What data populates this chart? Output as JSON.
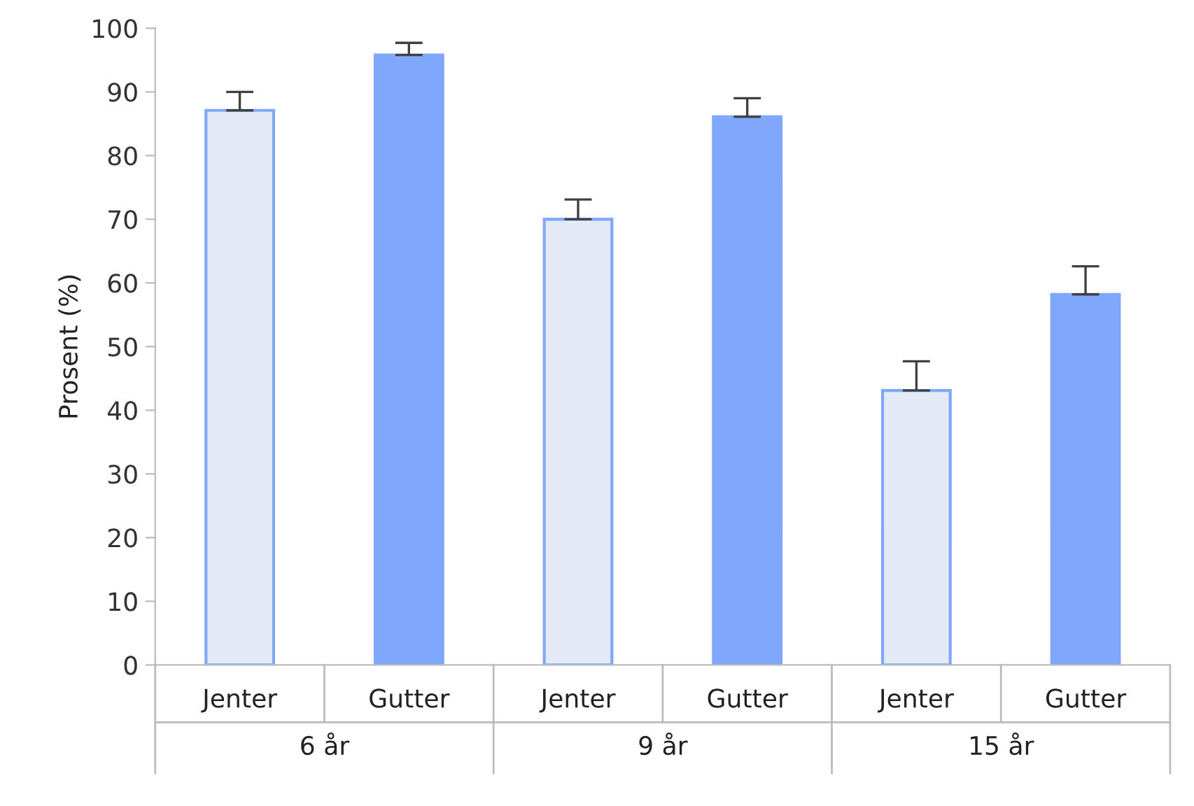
{
  "chart_data": {
    "type": "bar",
    "ylabel": "Prosent (%)",
    "categories": [
      "Jenter",
      "Gutter",
      "Jenter",
      "Gutter",
      "Jenter",
      "Gutter"
    ],
    "values": [
      87.1,
      95.8,
      70.0,
      86.1,
      43.1,
      58.2
    ],
    "errors": [
      [
        87.1,
        90.0
      ],
      [
        95.8,
        97.7
      ],
      [
        70.0,
        73.1
      ],
      [
        86.1,
        89.0
      ],
      [
        43.1,
        47.7
      ],
      [
        58.2,
        62.6
      ]
    ],
    "colors": [
      "#e3eaf6",
      "#7fa7fc",
      "#e3eaf6",
      "#7fa7fc",
      "#e3eaf6",
      "#7fa7fc"
    ],
    "annotations": [
      "6 år",
      "9 år",
      "15 år"
    ],
    "ylim": [
      0,
      100
    ],
    "yticks": [
      0,
      10,
      20,
      30,
      40,
      50,
      60,
      70,
      80,
      90,
      100
    ],
    "grid": false
  }
}
